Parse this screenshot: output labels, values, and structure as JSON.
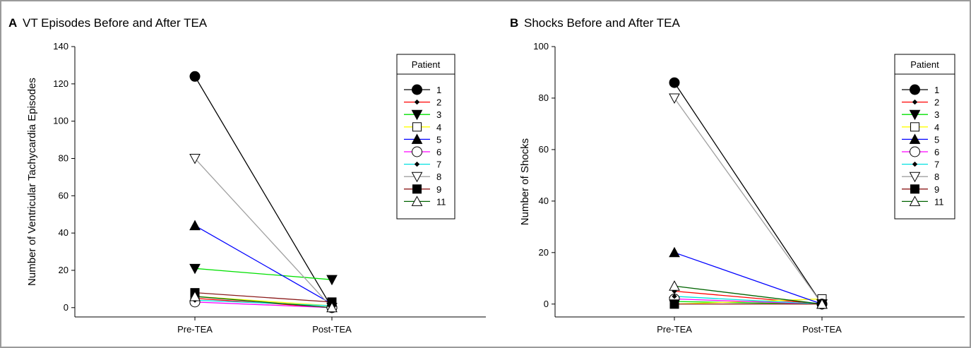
{
  "chart_data": [
    {
      "type": "line",
      "panel_letter": "A",
      "title": "VT Episodes Before and After TEA",
      "xlabel": "",
      "ylabel": "Number of Ventricular Tachycardia Episodes",
      "categories": [
        "Pre-TEA",
        "Post-TEA"
      ],
      "ylim": [
        -5,
        140
      ],
      "yticks": [
        0,
        20,
        40,
        60,
        80,
        100,
        120,
        140
      ],
      "grid": false,
      "legend_title": "Patient",
      "legend_position": "right",
      "series": [
        {
          "name": "1",
          "color": "#000000",
          "marker": "circle-filled",
          "values": [
            124,
            0
          ]
        },
        {
          "name": "2",
          "color": "#ff0000",
          "marker": "diamond-small",
          "values": [
            5,
            0
          ]
        },
        {
          "name": "3",
          "color": "#00e000",
          "marker": "triangle-down-filled",
          "values": [
            21,
            15
          ]
        },
        {
          "name": "4",
          "color": "#ffff00",
          "marker": "square-open",
          "values": [
            6,
            1
          ]
        },
        {
          "name": "5",
          "color": "#0000ff",
          "marker": "triangle-up-filled",
          "values": [
            44,
            2
          ]
        },
        {
          "name": "6",
          "color": "#ff00ff",
          "marker": "circle-open",
          "values": [
            3,
            0
          ]
        },
        {
          "name": "7",
          "color": "#00e0e0",
          "marker": "diamond-small",
          "values": [
            4,
            1
          ]
        },
        {
          "name": "8",
          "color": "#a0a0a0",
          "marker": "triangle-down-open",
          "values": [
            80,
            0
          ]
        },
        {
          "name": "9",
          "color": "#8b1a1a",
          "marker": "square-filled",
          "values": [
            8,
            3
          ]
        },
        {
          "name": "11",
          "color": "#006400",
          "marker": "triangle-up-open",
          "values": [
            6,
            0
          ]
        }
      ]
    },
    {
      "type": "line",
      "panel_letter": "B",
      "title": "Shocks Before and After TEA",
      "xlabel": "",
      "ylabel": "Number of Shocks",
      "categories": [
        "Pre-TEA",
        "Post-TEA"
      ],
      "ylim": [
        -5,
        100
      ],
      "yticks": [
        0,
        20,
        40,
        60,
        80,
        100
      ],
      "grid": false,
      "legend_title": "Patient",
      "legend_position": "right",
      "series": [
        {
          "name": "1",
          "color": "#000000",
          "marker": "circle-filled",
          "values": [
            86,
            0
          ]
        },
        {
          "name": "2",
          "color": "#ff0000",
          "marker": "diamond-small",
          "values": [
            5,
            0
          ]
        },
        {
          "name": "3",
          "color": "#00e000",
          "marker": "triangle-down-filled",
          "values": [
            1,
            0
          ]
        },
        {
          "name": "4",
          "color": "#ffff00",
          "marker": "square-open",
          "values": [
            0,
            2
          ]
        },
        {
          "name": "5",
          "color": "#0000ff",
          "marker": "triangle-up-filled",
          "values": [
            20,
            0
          ]
        },
        {
          "name": "6",
          "color": "#ff00ff",
          "marker": "circle-open",
          "values": [
            2,
            0
          ]
        },
        {
          "name": "7",
          "color": "#00e0e0",
          "marker": "diamond-small",
          "values": [
            3,
            0
          ]
        },
        {
          "name": "8",
          "color": "#a0a0a0",
          "marker": "triangle-down-open",
          "values": [
            80,
            0
          ]
        },
        {
          "name": "9",
          "color": "#8b1a1a",
          "marker": "square-filled",
          "values": [
            0,
            0
          ]
        },
        {
          "name": "11",
          "color": "#006400",
          "marker": "triangle-up-open",
          "values": [
            7,
            0
          ]
        }
      ]
    }
  ]
}
